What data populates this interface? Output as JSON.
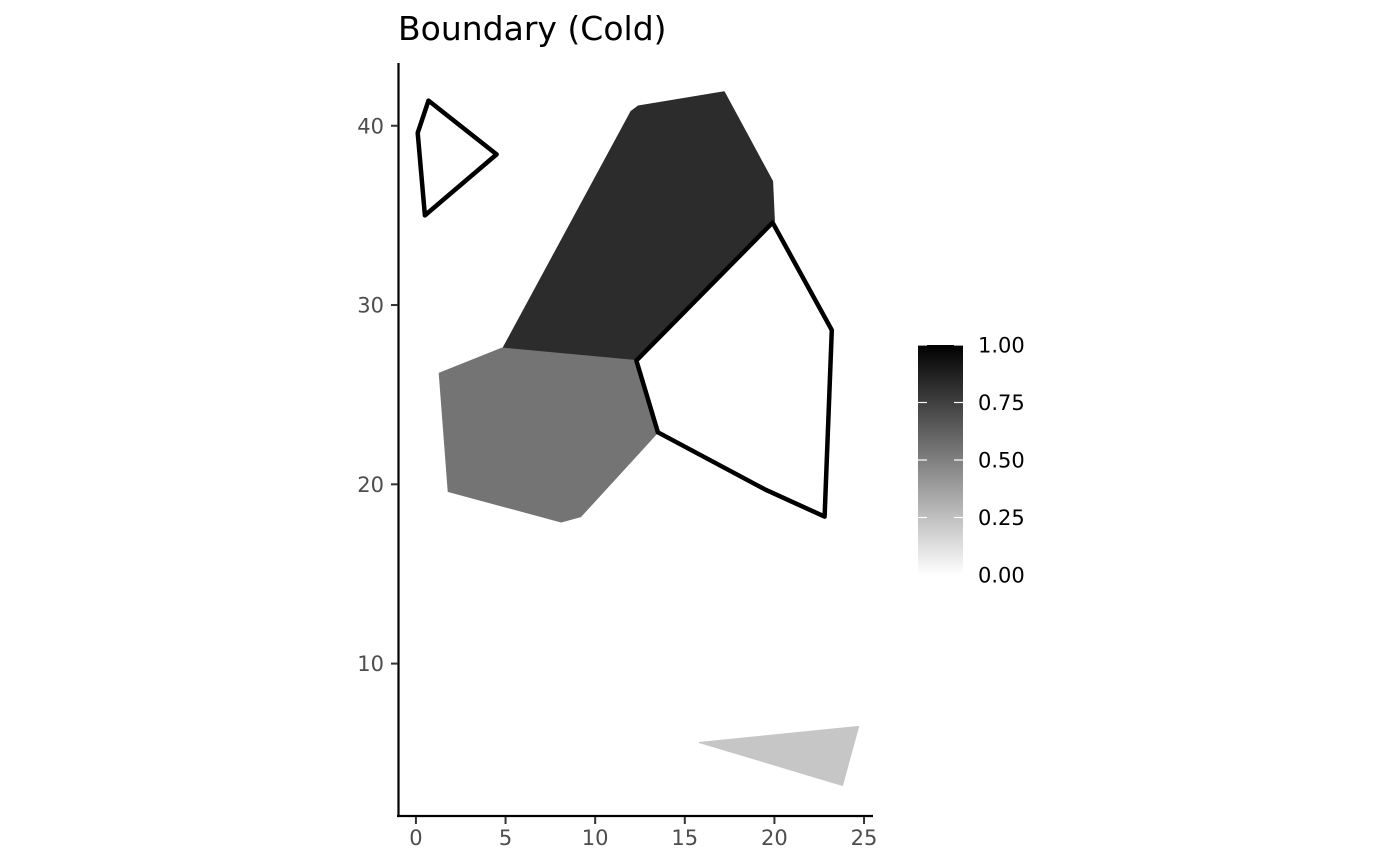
{
  "chart_data": {
    "type": "map",
    "title": "Boundary (Cold)",
    "xlabel": "",
    "ylabel": "",
    "xlim": [
      -1,
      25.5
    ],
    "ylim": [
      1.5,
      43.5
    ],
    "x_ticks": [
      0,
      5,
      10,
      15,
      20,
      25
    ],
    "y_ticks": [
      10,
      20,
      30,
      40
    ],
    "grid": false,
    "legend": {
      "placement": "right",
      "type": "colorbar",
      "range": [
        0,
        1
      ],
      "colors": [
        "#ffffff",
        "#000000"
      ],
      "breaks": [
        0,
        0.25,
        0.5,
        0.75,
        1
      ],
      "labels": [
        "0.00",
        "0.25",
        "0.50",
        "0.75",
        "1.00"
      ]
    },
    "polygons": [
      {
        "id": "region-a",
        "value": 0.83,
        "color": "#2c2c2c",
        "outlined": false,
        "points": [
          [
            4.8,
            27.5
          ],
          [
            12.0,
            40.8
          ],
          [
            12.4,
            41.1
          ],
          [
            17.2,
            41.9
          ],
          [
            19.9,
            36.9
          ],
          [
            20.0,
            34.7
          ],
          [
            12.3,
            26.9
          ]
        ]
      },
      {
        "id": "region-b",
        "value": 0.55,
        "color": "#747474",
        "outlined": false,
        "points": [
          [
            1.3,
            26.2
          ],
          [
            4.8,
            27.6
          ],
          [
            12.3,
            26.9
          ],
          [
            13.5,
            22.9
          ],
          [
            9.2,
            18.2
          ],
          [
            8.1,
            17.9
          ],
          [
            1.8,
            19.6
          ]
        ]
      },
      {
        "id": "region-c",
        "value": 0.25,
        "color": "#c6c6c6",
        "outlined": false,
        "points": [
          [
            15.8,
            5.6
          ],
          [
            24.7,
            6.5
          ],
          [
            23.8,
            3.2
          ]
        ]
      },
      {
        "id": "boundary-triangle",
        "value": 0,
        "color": "#ffffff",
        "outlined": true,
        "points": [
          [
            0.1,
            39.6
          ],
          [
            0.7,
            41.4
          ],
          [
            4.5,
            38.4
          ],
          [
            0.5,
            35.0
          ]
        ]
      },
      {
        "id": "boundary-pentagon",
        "value": 0,
        "color": "#ffffff",
        "outlined": true,
        "points": [
          [
            12.3,
            26.9
          ],
          [
            19.9,
            34.6
          ],
          [
            23.2,
            28.6
          ],
          [
            22.8,
            18.2
          ],
          [
            19.5,
            19.7
          ],
          [
            13.5,
            22.9
          ]
        ]
      }
    ]
  }
}
